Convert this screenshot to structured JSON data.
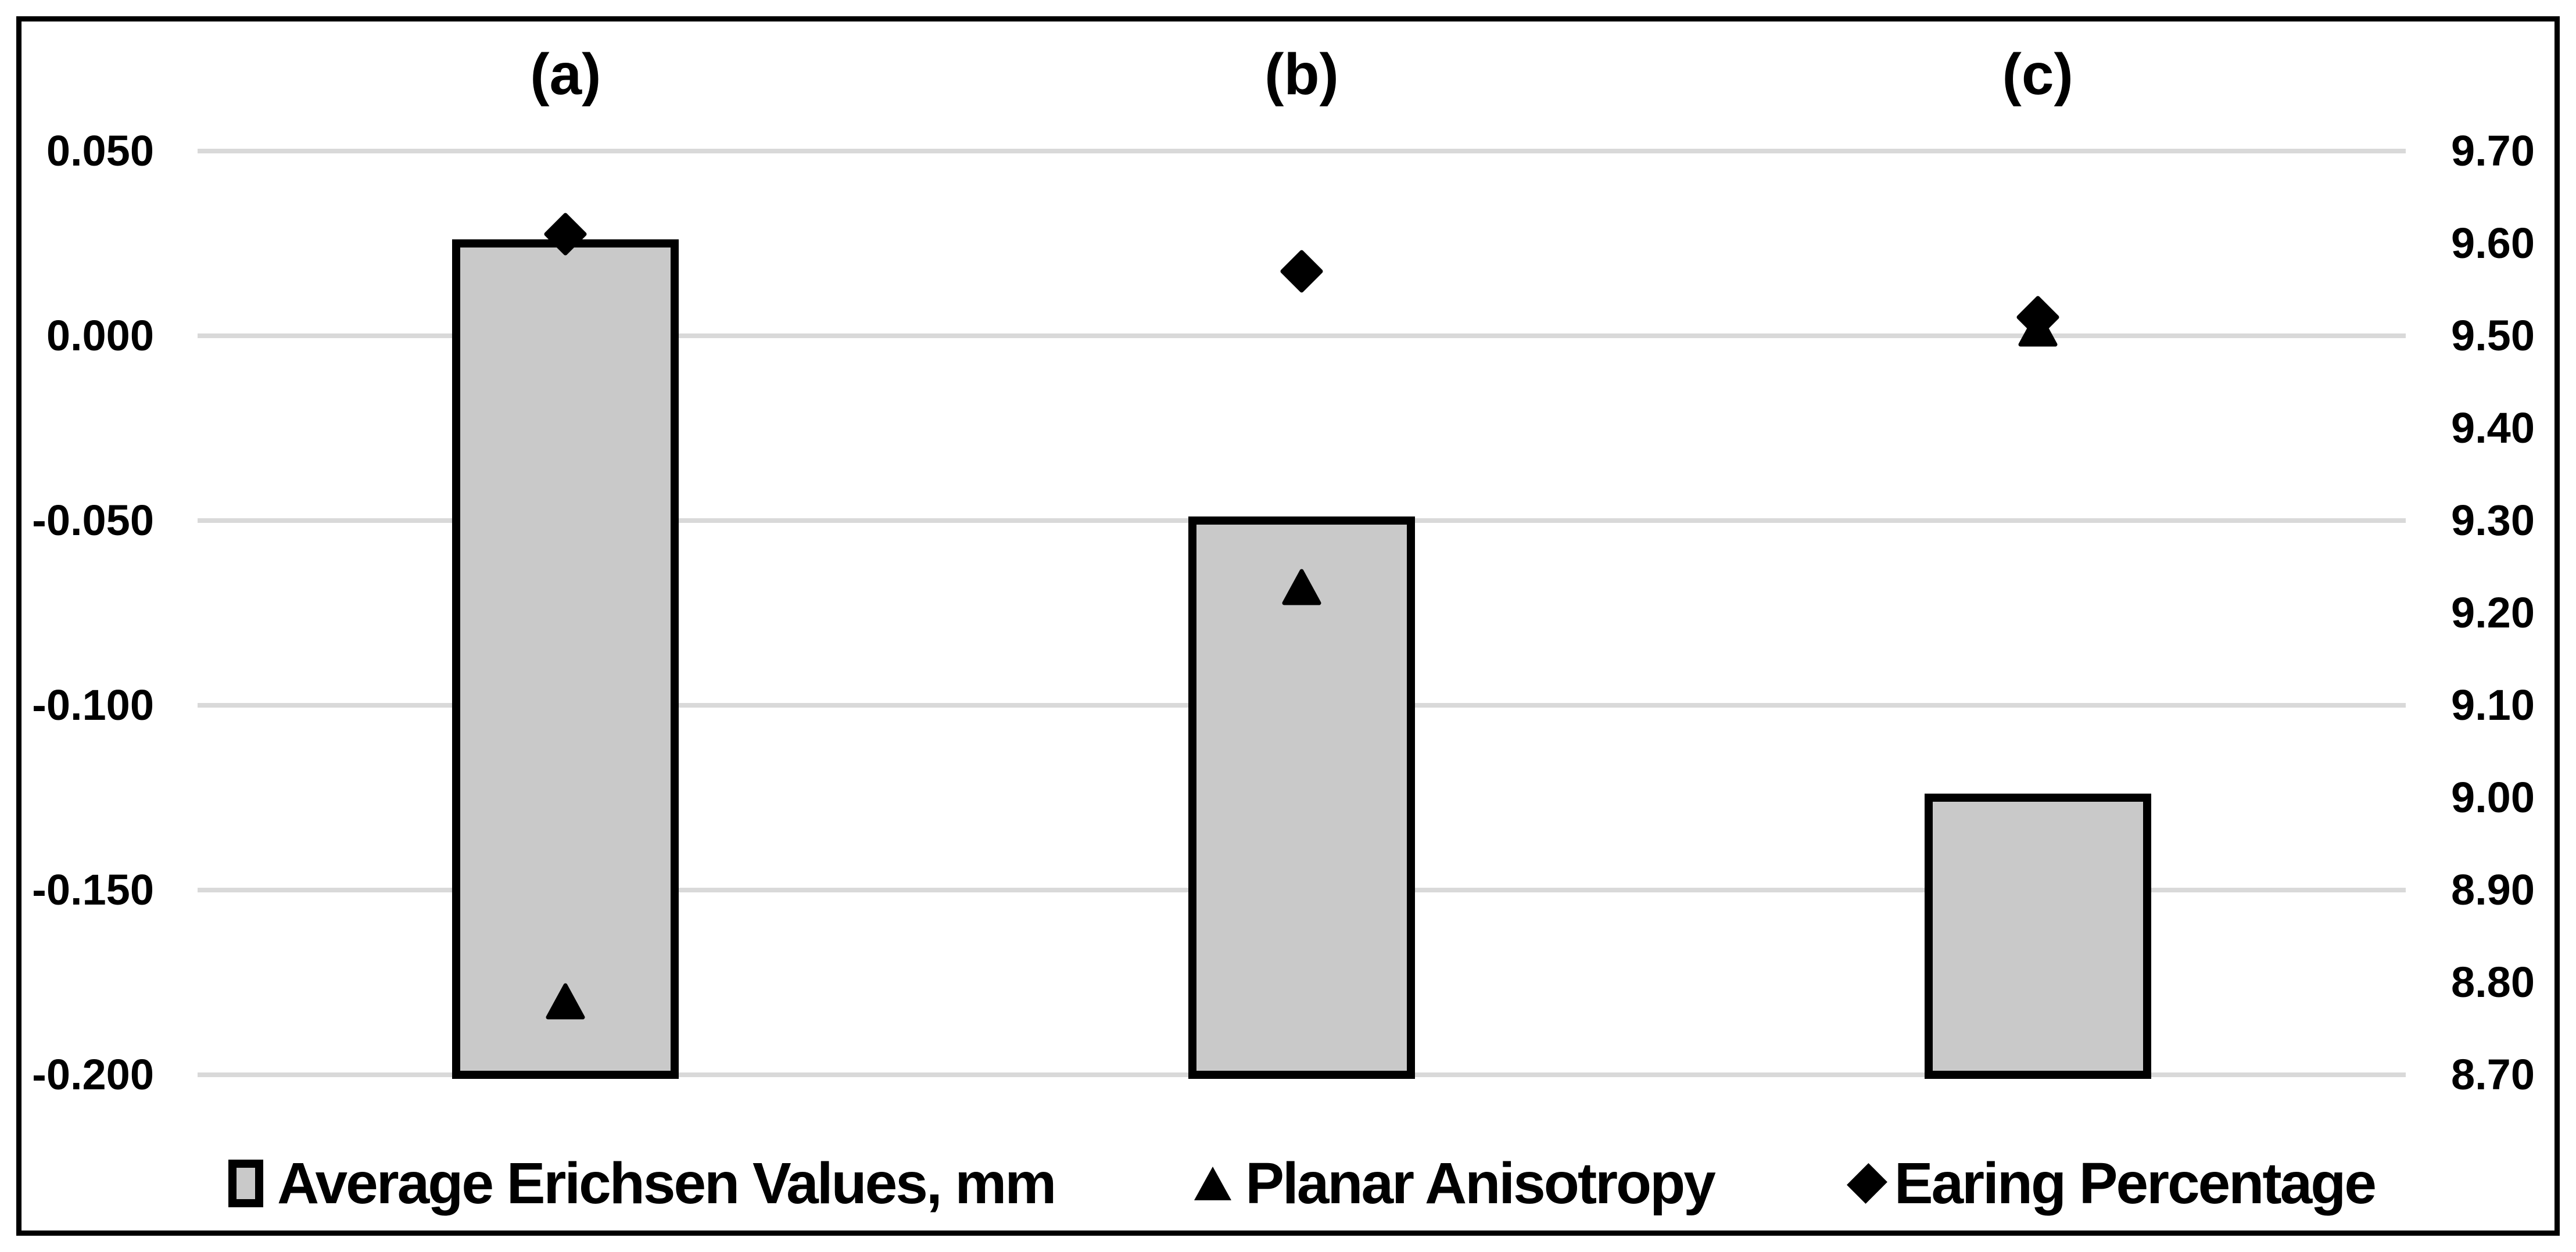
{
  "figure": {
    "background": "#ffffff",
    "frame_color": "#000000"
  },
  "legend": {
    "position": "bottom",
    "items": [
      {
        "icon": "bar-swatch",
        "label": "Average Erichsen Values, mm"
      },
      {
        "icon": "triangle",
        "label": "Planar Anisotropy"
      },
      {
        "icon": "diamond",
        "label": "Earing Percentage"
      }
    ]
  },
  "chart_data": {
    "type": "combo",
    "categories": [
      "(a)",
      "(b)",
      "(c)"
    ],
    "series": [
      {
        "name": "Average Erichsen Values, mm",
        "type": "bar",
        "marker": "square",
        "axis": "right",
        "values": [
          9.6,
          9.3,
          9.0
        ]
      },
      {
        "name": "Planar Anisotropy",
        "type": "scatter",
        "marker": "triangle",
        "axis": "left",
        "values": [
          -0.18,
          -0.068,
          0.002
        ]
      },
      {
        "name": "Earing Percentage",
        "type": "scatter",
        "marker": "diamond",
        "axis": "right",
        "values": [
          9.61,
          9.57,
          9.52
        ]
      }
    ],
    "left_axis": {
      "min": -0.2,
      "max": 0.05,
      "tick_step": 0.05,
      "ticks": [
        "0.050",
        "0.000",
        "-0.050",
        "-0.100",
        "-0.150",
        "-0.200"
      ]
    },
    "right_axis": {
      "min": 8.7,
      "max": 9.7,
      "tick_step": 0.1,
      "ticks": [
        "9.70",
        "9.60",
        "9.50",
        "9.40",
        "9.30",
        "9.20",
        "9.10",
        "9.00",
        "8.90",
        "8.80",
        "8.70"
      ]
    },
    "grid": true,
    "gridline_alignment": "every 0.050 left / 0.20 right",
    "legend_position": "bottom",
    "colors": {
      "bar_fill": "#c9c9c9",
      "bar_border": "#000000",
      "gridline": "#d9d9d9",
      "marker": "#000000",
      "text": "#000000"
    }
  }
}
